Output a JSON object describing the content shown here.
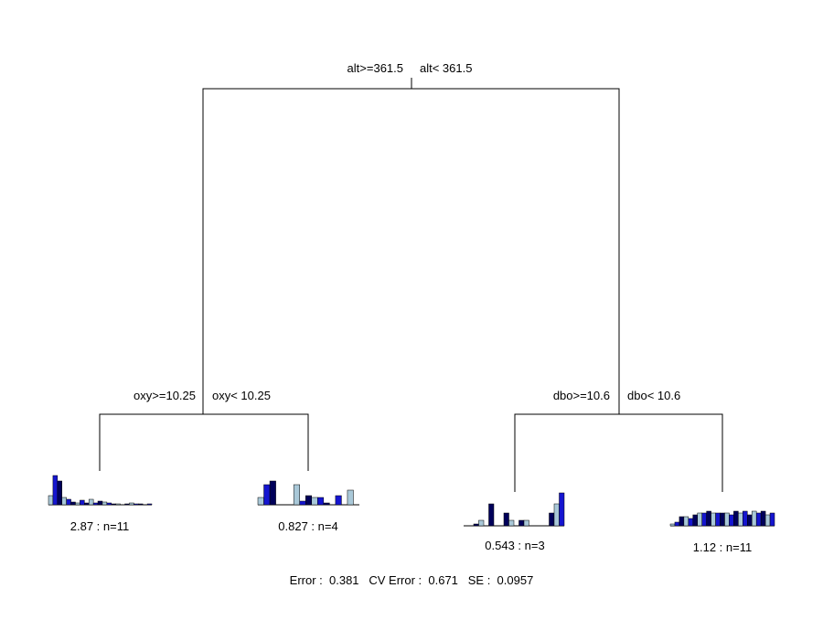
{
  "tree": {
    "root": {
      "left_label": "alt>=361.5",
      "right_label": "alt< 361.5"
    },
    "splits": [
      {
        "left_label": "oxy>=10.25",
        "right_label": "oxy< 10.25"
      },
      {
        "left_label": "dbo>=10.6",
        "right_label": "dbo< 10.6"
      }
    ],
    "bar_colors": [
      "#a9c8d8",
      "#1515d0",
      "#00005a"
    ],
    "leaves": [
      {
        "label": "2.87 : n=11",
        "bars": [
          10,
          32,
          26,
          8,
          6,
          3,
          2,
          5,
          2,
          6,
          2,
          4,
          3,
          2,
          1,
          1,
          0,
          1,
          2,
          1,
          1,
          0,
          1
        ]
      },
      {
        "label": "0.827 : n=4",
        "bars": [
          8,
          22,
          26,
          0,
          0,
          0,
          22,
          4,
          10,
          8,
          8,
          2,
          0,
          10,
          0,
          16,
          0
        ]
      },
      {
        "label": "0.543 : n=3",
        "bars": [
          0,
          0,
          2,
          6,
          0,
          24,
          0,
          0,
          14,
          6,
          0,
          6,
          6,
          0,
          0,
          0,
          0,
          14,
          24,
          36
        ]
      },
      {
        "label": "1.12 : n=11",
        "bars": [
          2,
          4,
          10,
          10,
          8,
          12,
          14,
          14,
          16,
          14,
          14,
          14,
          14,
          12,
          16,
          14,
          16,
          12,
          16,
          14,
          16,
          12,
          14
        ]
      }
    ],
    "footer": "Error :  0.381   CV Error :  0.671   SE :  0.0957"
  }
}
